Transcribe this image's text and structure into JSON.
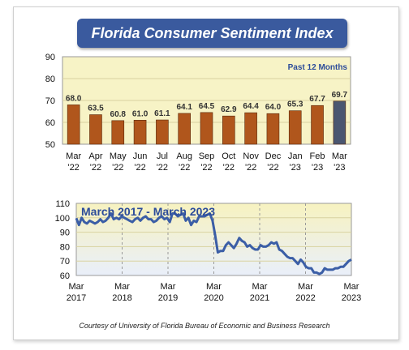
{
  "title": "Florida Consumer Sentiment Index",
  "credit": "Courtesy of University of Florida Bureau of Economic and Business Research",
  "colors": {
    "bar": "#b0561c",
    "bar_last": "#4a5670",
    "line": "#3b5ea6",
    "plot_bg": "#f7f3c6",
    "title_bg": "#3a5a9e"
  },
  "chart_data": [
    {
      "type": "bar",
      "annotation": "Past 12 Months",
      "categories": [
        "Mar '22",
        "Apr '22",
        "May '22",
        "Jun '22",
        "Jul '22",
        "Aug '22",
        "Sep '22",
        "Oct '22",
        "Nov '22",
        "Dec '22",
        "Jan '23",
        "Feb '23",
        "Mar '23"
      ],
      "category_lines": [
        [
          "Mar",
          "'22"
        ],
        [
          "Apr",
          "'22"
        ],
        [
          "May",
          "'22"
        ],
        [
          "Jun",
          "'22"
        ],
        [
          "Jul",
          "'22"
        ],
        [
          "Aug",
          "'22"
        ],
        [
          "Sep",
          "'22"
        ],
        [
          "Oct",
          "'22"
        ],
        [
          "Nov",
          "'22"
        ],
        [
          "Dec",
          "'22"
        ],
        [
          "Jan",
          "'23"
        ],
        [
          "Feb",
          "'23"
        ],
        [
          "Mar",
          "'23"
        ]
      ],
      "values": [
        68.0,
        63.5,
        60.8,
        61.0,
        61.1,
        64.1,
        64.5,
        62.9,
        64.4,
        64.0,
        65.3,
        67.7,
        69.7
      ],
      "value_labels": [
        "68.0",
        "63.5",
        "60.8",
        "61.0",
        "61.1",
        "64.1",
        "64.5",
        "62.9",
        "64.4",
        "64.0",
        "65.3",
        "67.7",
        "69.7"
      ],
      "ylim": [
        50,
        90
      ],
      "yticks": [
        50,
        60,
        70,
        80,
        90
      ],
      "grid": true
    },
    {
      "type": "line",
      "title": "March 2017 - March 2023",
      "ylim": [
        60,
        110
      ],
      "yticks": [
        60,
        70,
        80,
        90,
        100,
        110
      ],
      "xticks": [
        [
          "Mar",
          "2017"
        ],
        [
          "Mar",
          "2018"
        ],
        [
          "Mar",
          "2019"
        ],
        [
          "Mar",
          "2020"
        ],
        [
          "Mar",
          "2021"
        ],
        [
          "Mar",
          "2022"
        ],
        [
          "Mar",
          "2023"
        ]
      ],
      "start": "2017-03",
      "end": "2023-03",
      "values": [
        99.7,
        95,
        100,
        97,
        96,
        98,
        97,
        96,
        97,
        99,
        97,
        98,
        100,
        103,
        99,
        100,
        99,
        101,
        100,
        99,
        98,
        97,
        99,
        100,
        98,
        100,
        101,
        99,
        99,
        97,
        98,
        100,
        101,
        99,
        100,
        97,
        103,
        103,
        101,
        102,
        103,
        98,
        100,
        95,
        98,
        97,
        101,
        101,
        101,
        102,
        103,
        98,
        88,
        76,
        77,
        77,
        81,
        83,
        81,
        79,
        82,
        86,
        84,
        83,
        80,
        81,
        79,
        78,
        78,
        81,
        80,
        80,
        81,
        83,
        82,
        83,
        78,
        77,
        75,
        73,
        72,
        72,
        70,
        68,
        71,
        69,
        66,
        65,
        65,
        62,
        62,
        61,
        62,
        65,
        64,
        64,
        64,
        65,
        65,
        66,
        66,
        68,
        70,
        71
      ]
    }
  ]
}
